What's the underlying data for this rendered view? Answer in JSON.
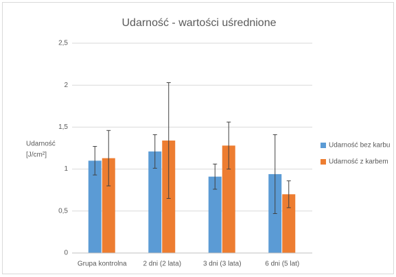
{
  "chart_data": {
    "type": "bar",
    "title": "Udarność - wartości uśrednione",
    "ylabel": [
      "Udarność",
      "[J/cm²]"
    ],
    "categories": [
      "Grupa kontrolna",
      "2 dni (2 lata)",
      "3 dni (3 lata)",
      "6 dni (5 lat)"
    ],
    "series": [
      {
        "name": "Udarność bez karbu",
        "color": "#5b9bd5",
        "values": [
          1.1,
          1.21,
          0.91,
          0.94
        ],
        "errors": [
          0.17,
          0.2,
          0.15,
          0.47
        ]
      },
      {
        "name": "Udarność z karbem",
        "color": "#ed7d31",
        "values": [
          1.13,
          1.34,
          1.28,
          0.7
        ],
        "errors": [
          0.33,
          0.69,
          0.28,
          0.16
        ]
      }
    ],
    "ylim": [
      0,
      2.5
    ],
    "yticks": [
      0,
      {
        "value": 0.5,
        "label": "0,5"
      },
      1,
      {
        "value": 1.5,
        "label": "1,5"
      },
      2,
      {
        "value": 2.5,
        "label": "2,5"
      }
    ],
    "grid": true,
    "legend": "right"
  }
}
